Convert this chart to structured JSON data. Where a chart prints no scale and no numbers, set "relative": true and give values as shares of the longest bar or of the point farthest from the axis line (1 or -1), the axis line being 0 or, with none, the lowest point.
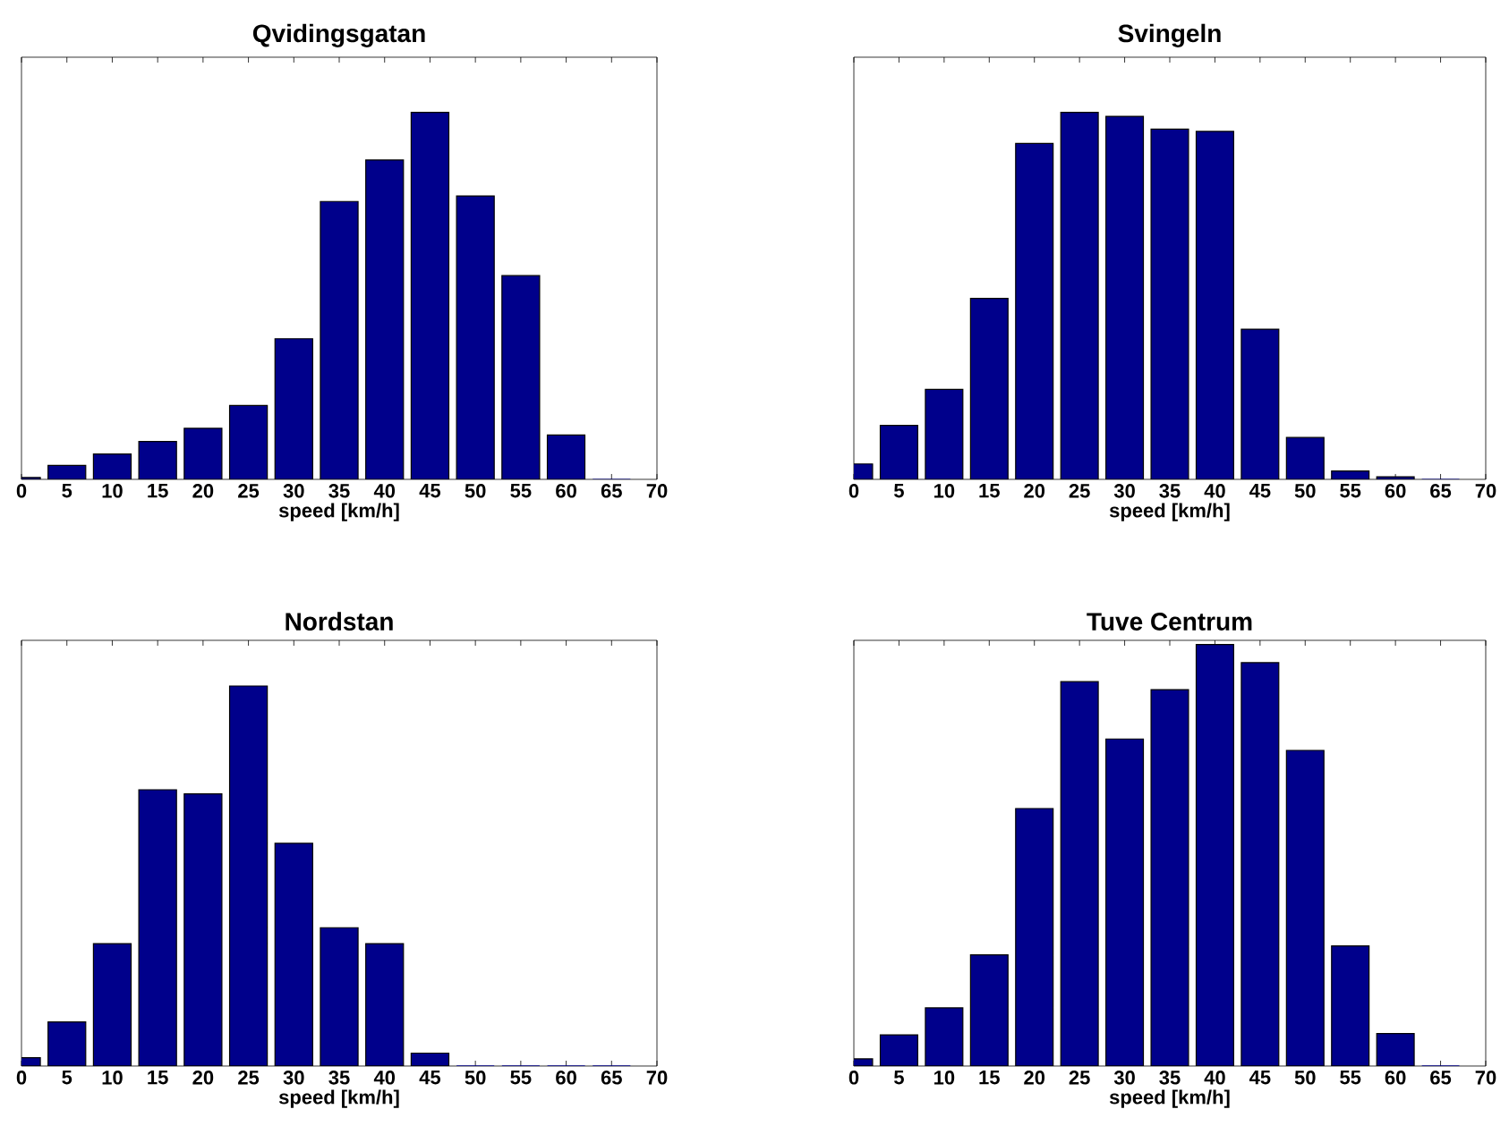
{
  "chart_data": [
    {
      "type": "bar",
      "title": "Qvidingsgatan",
      "xlabel": "speed [km/h]",
      "relative": true,
      "color": "#00008b",
      "xlim": [
        0,
        70
      ],
      "xticks": [
        0,
        5,
        10,
        15,
        20,
        25,
        30,
        35,
        40,
        45,
        50,
        55,
        60,
        65,
        70
      ],
      "x": [
        0,
        5,
        10,
        15,
        20,
        25,
        30,
        35,
        40,
        45,
        50,
        55,
        60,
        65
      ],
      "values": [
        0.005,
        0.038,
        0.069,
        0.103,
        0.139,
        0.201,
        0.383,
        0.757,
        0.87,
        1,
        0.772,
        0.555,
        0.121,
        0
      ]
    },
    {
      "type": "bar",
      "title": "Svingeln",
      "xlabel": "speed [km/h]",
      "relative": true,
      "color": "#00008b",
      "xlim": [
        0,
        70
      ],
      "xticks": [
        0,
        5,
        10,
        15,
        20,
        25,
        30,
        35,
        40,
        45,
        50,
        55,
        60,
        65,
        70
      ],
      "x": [
        0,
        5,
        10,
        15,
        20,
        25,
        30,
        35,
        40,
        45,
        50,
        55,
        60,
        65
      ],
      "values": [
        0.042,
        0.147,
        0.245,
        0.493,
        0.915,
        1,
        0.989,
        0.954,
        0.948,
        0.409,
        0.114,
        0.023,
        0.007,
        0
      ]
    },
    {
      "type": "bar",
      "title": "Nordstan",
      "xlabel": "speed [km/h]",
      "relative": true,
      "color": "#00008b",
      "xlim": [
        0,
        70
      ],
      "xticks": [
        0,
        5,
        10,
        15,
        20,
        25,
        30,
        35,
        40,
        45,
        50,
        55,
        60,
        65,
        70
      ],
      "x": [
        0,
        5,
        10,
        15,
        20,
        25,
        30,
        35,
        40,
        45,
        50,
        55,
        60,
        65
      ],
      "values": [
        0.022,
        0.116,
        0.322,
        0.727,
        0.716,
        1,
        0.586,
        0.364,
        0.322,
        0.034,
        0,
        0,
        0,
        0
      ]
    },
    {
      "type": "bar",
      "title": "Tuve Centrum",
      "xlabel": "speed [km/h]",
      "relative": true,
      "color": "#00008b",
      "xlim": [
        0,
        70
      ],
      "xticks": [
        0,
        5,
        10,
        15,
        20,
        25,
        30,
        35,
        40,
        45,
        50,
        55,
        60,
        65,
        70
      ],
      "x": [
        0,
        5,
        10,
        15,
        20,
        25,
        30,
        35,
        40,
        45,
        50,
        55,
        60,
        65
      ],
      "values": [
        0.017,
        0.074,
        0.138,
        0.264,
        0.611,
        0.912,
        0.776,
        0.893,
        1,
        0.957,
        0.749,
        0.285,
        0.077,
        0
      ]
    }
  ]
}
